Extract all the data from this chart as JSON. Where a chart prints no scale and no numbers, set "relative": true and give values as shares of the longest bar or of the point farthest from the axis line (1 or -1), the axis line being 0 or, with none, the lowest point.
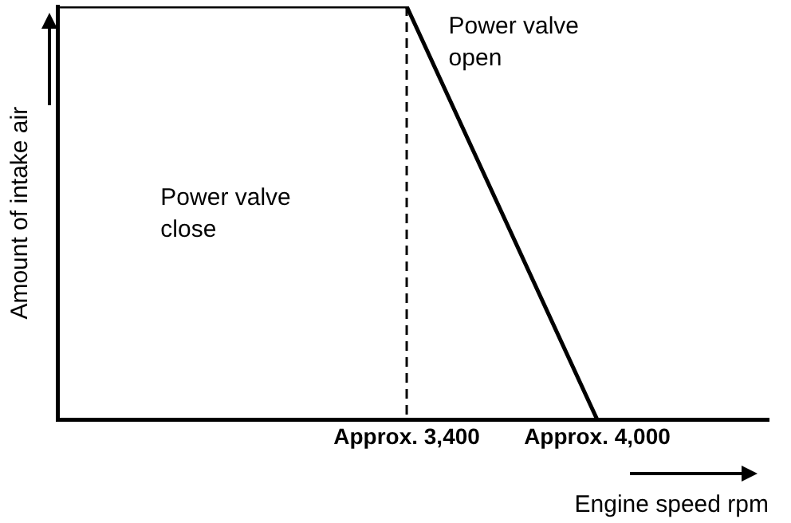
{
  "chart_data": {
    "type": "line",
    "relative": true,
    "ylabel": "Amount of intake air",
    "xlabel": "Engine speed rpm",
    "xlim": [
      2300,
      4540
    ],
    "xticks": [
      {
        "value": 3400,
        "label": "Approx. 3,400"
      },
      {
        "value": 4000,
        "label": "Approx. 4,000"
      }
    ],
    "x": [
      2300,
      3400,
      4000
    ],
    "series": [
      {
        "color": "#000000",
        "values": [
          1,
          1,
          0
        ]
      }
    ],
    "marker": "none",
    "line_style": "solid",
    "legend": false,
    "grid": false,
    "ref_lines": [
      {
        "axis": "x",
        "value": 3400,
        "line_style": "dashed",
        "color": "#000000"
      }
    ],
    "annotations": [
      "Power valve open",
      "Power valve close"
    ]
  }
}
